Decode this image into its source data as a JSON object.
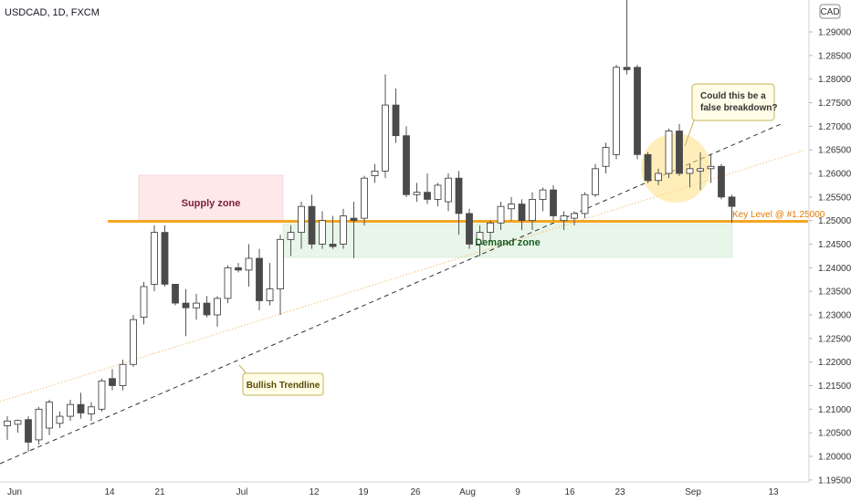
{
  "symbol_label": "USDCAD, 1D, FXCM",
  "currency_badge": "CAD",
  "colors": {
    "up_body": "#ffffff",
    "down_body": "#4a4a4a",
    "wick": "#555555",
    "key_level": "#f5a623",
    "supply_fill": "#fde8ea",
    "supply_text": "#7a1f3d",
    "demand_fill": "#e8f5e9",
    "demand_text": "#1b5e20",
    "trendline_dash": "#333333",
    "trendline_dot": "#f5c27a",
    "callout_fill": "#fffde7",
    "callout_border": "#c5b358",
    "highlight": "#ffe082"
  },
  "chart_data": {
    "type": "candlestick",
    "title": "USDCAD, 1D, FXCM",
    "x_tick_labels": [
      "Jun",
      "14",
      "21",
      "Jul",
      "12",
      "19",
      "26",
      "Aug",
      "9",
      "16",
      "23",
      "Sep",
      "13"
    ],
    "y_tick_labels": [
      "1.29000",
      "1.28500",
      "1.28000",
      "1.27500",
      "1.27000",
      "1.26500",
      "1.26000",
      "1.25500",
      "1.25000",
      "1.24500",
      "1.24000",
      "1.23500",
      "1.23000",
      "1.22500",
      "1.22000",
      "1.21500",
      "1.21000",
      "1.20500",
      "1.20000",
      "1.19500"
    ],
    "ylim": [
      1.195,
      1.3
    ],
    "grid": false,
    "candles": [
      {
        "o": 1.2065,
        "h": 1.2085,
        "l": 1.2035,
        "c": 1.2075
      },
      {
        "o": 1.2068,
        "h": 1.2078,
        "l": 1.205,
        "c": 1.2076
      },
      {
        "o": 1.2078,
        "h": 1.2085,
        "l": 1.201,
        "c": 1.203
      },
      {
        "o": 1.2035,
        "h": 1.2105,
        "l": 1.2025,
        "c": 1.21
      },
      {
        "o": 1.206,
        "h": 1.212,
        "l": 1.2045,
        "c": 1.2115
      },
      {
        "o": 1.207,
        "h": 1.2095,
        "l": 1.206,
        "c": 1.2085
      },
      {
        "o": 1.2085,
        "h": 1.212,
        "l": 1.2075,
        "c": 1.211
      },
      {
        "o": 1.211,
        "h": 1.2135,
        "l": 1.208,
        "c": 1.2092
      },
      {
        "o": 1.209,
        "h": 1.2115,
        "l": 1.2075,
        "c": 1.2105
      },
      {
        "o": 1.21,
        "h": 1.2165,
        "l": 1.2095,
        "c": 1.216
      },
      {
        "o": 1.2165,
        "h": 1.2185,
        "l": 1.214,
        "c": 1.215
      },
      {
        "o": 1.215,
        "h": 1.2205,
        "l": 1.214,
        "c": 1.2195
      },
      {
        "o": 1.2195,
        "h": 1.23,
        "l": 1.219,
        "c": 1.229
      },
      {
        "o": 1.2295,
        "h": 1.237,
        "l": 1.228,
        "c": 1.236
      },
      {
        "o": 1.2365,
        "h": 1.249,
        "l": 1.235,
        "c": 1.2475
      },
      {
        "o": 1.2475,
        "h": 1.249,
        "l": 1.236,
        "c": 1.2365
      },
      {
        "o": 1.2365,
        "h": 1.2365,
        "l": 1.232,
        "c": 1.2325
      },
      {
        "o": 1.2325,
        "h": 1.2355,
        "l": 1.2255,
        "c": 1.2315
      },
      {
        "o": 1.2315,
        "h": 1.2345,
        "l": 1.229,
        "c": 1.2325
      },
      {
        "o": 1.2325,
        "h": 1.234,
        "l": 1.2295,
        "c": 1.23
      },
      {
        "o": 1.23,
        "h": 1.234,
        "l": 1.2275,
        "c": 1.2335
      },
      {
        "o": 1.2335,
        "h": 1.2405,
        "l": 1.2325,
        "c": 1.24
      },
      {
        "o": 1.24,
        "h": 1.241,
        "l": 1.239,
        "c": 1.2395
      },
      {
        "o": 1.2395,
        "h": 1.245,
        "l": 1.236,
        "c": 1.242
      },
      {
        "o": 1.242,
        "h": 1.244,
        "l": 1.231,
        "c": 1.233
      },
      {
        "o": 1.233,
        "h": 1.241,
        "l": 1.232,
        "c": 1.2355
      },
      {
        "o": 1.2355,
        "h": 1.247,
        "l": 1.23,
        "c": 1.246
      },
      {
        "o": 1.246,
        "h": 1.249,
        "l": 1.2425,
        "c": 1.2475
      },
      {
        "o": 1.2475,
        "h": 1.254,
        "l": 1.244,
        "c": 1.253
      },
      {
        "o": 1.253,
        "h": 1.2555,
        "l": 1.244,
        "c": 1.245
      },
      {
        "o": 1.245,
        "h": 1.252,
        "l": 1.244,
        "c": 1.25
      },
      {
        "o": 1.245,
        "h": 1.251,
        "l": 1.244,
        "c": 1.2445
      },
      {
        "o": 1.245,
        "h": 1.2525,
        "l": 1.244,
        "c": 1.251
      },
      {
        "o": 1.2505,
        "h": 1.254,
        "l": 1.242,
        "c": 1.25
      },
      {
        "o": 1.2505,
        "h": 1.2595,
        "l": 1.249,
        "c": 1.259
      },
      {
        "o": 1.2595,
        "h": 1.262,
        "l": 1.258,
        "c": 1.2605
      },
      {
        "o": 1.2605,
        "h": 1.281,
        "l": 1.259,
        "c": 1.2745
      },
      {
        "o": 1.2745,
        "h": 1.278,
        "l": 1.2665,
        "c": 1.268
      },
      {
        "o": 1.268,
        "h": 1.27,
        "l": 1.255,
        "c": 1.2555
      },
      {
        "o": 1.2555,
        "h": 1.258,
        "l": 1.254,
        "c": 1.256
      },
      {
        "o": 1.256,
        "h": 1.26,
        "l": 1.2535,
        "c": 1.2545
      },
      {
        "o": 1.2545,
        "h": 1.258,
        "l": 1.253,
        "c": 1.2575
      },
      {
        "o": 1.254,
        "h": 1.26,
        "l": 1.252,
        "c": 1.259
      },
      {
        "o": 1.259,
        "h": 1.2605,
        "l": 1.247,
        "c": 1.2515
      },
      {
        "o": 1.2515,
        "h": 1.2525,
        "l": 1.244,
        "c": 1.245
      },
      {
        "o": 1.245,
        "h": 1.249,
        "l": 1.2425,
        "c": 1.2475
      },
      {
        "o": 1.2475,
        "h": 1.25,
        "l": 1.2455,
        "c": 1.2495
      },
      {
        "o": 1.2495,
        "h": 1.254,
        "l": 1.248,
        "c": 1.253
      },
      {
        "o": 1.2525,
        "h": 1.255,
        "l": 1.25,
        "c": 1.2535
      },
      {
        "o": 1.2535,
        "h": 1.2545,
        "l": 1.248,
        "c": 1.25
      },
      {
        "o": 1.25,
        "h": 1.256,
        "l": 1.248,
        "c": 1.2545
      },
      {
        "o": 1.2545,
        "h": 1.257,
        "l": 1.252,
        "c": 1.2565
      },
      {
        "o": 1.2565,
        "h": 1.2575,
        "l": 1.25,
        "c": 1.251
      },
      {
        "o": 1.25,
        "h": 1.252,
        "l": 1.248,
        "c": 1.251
      },
      {
        "o": 1.2505,
        "h": 1.252,
        "l": 1.249,
        "c": 1.2515
      },
      {
        "o": 1.2515,
        "h": 1.256,
        "l": 1.2505,
        "c": 1.2555
      },
      {
        "o": 1.2555,
        "h": 1.262,
        "l": 1.255,
        "c": 1.261
      },
      {
        "o": 1.2615,
        "h": 1.2665,
        "l": 1.26,
        "c": 1.2655
      },
      {
        "o": 1.264,
        "h": 1.283,
        "l": 1.263,
        "c": 1.2825
      },
      {
        "o": 1.2825,
        "h": 1.299,
        "l": 1.281,
        "c": 1.282
      },
      {
        "o": 1.2825,
        "h": 1.283,
        "l": 1.263,
        "c": 1.264
      },
      {
        "o": 1.264,
        "h": 1.2645,
        "l": 1.258,
        "c": 1.2585
      },
      {
        "o": 1.2585,
        "h": 1.261,
        "l": 1.2575,
        "c": 1.26
      },
      {
        "o": 1.26,
        "h": 1.2695,
        "l": 1.259,
        "c": 1.269
      },
      {
        "o": 1.269,
        "h": 1.2705,
        "l": 1.2595,
        "c": 1.26
      },
      {
        "o": 1.26,
        "h": 1.262,
        "l": 1.257,
        "c": 1.261
      },
      {
        "o": 1.2605,
        "h": 1.2645,
        "l": 1.2565,
        "c": 1.261
      },
      {
        "o": 1.261,
        "h": 1.264,
        "l": 1.258,
        "c": 1.2615
      },
      {
        "o": 1.2615,
        "h": 1.262,
        "l": 1.2545,
        "c": 1.255
      },
      {
        "o": 1.255,
        "h": 1.2555,
        "l": 1.2495,
        "c": 1.253
      }
    ],
    "key_level": 1.25,
    "annotations": {
      "supply": "Supply zone",
      "demand": "Demand zone",
      "trendline": "Bullish Trendline",
      "key_level": "Key Level @ #1.25000",
      "callout_line1": "Could this be a",
      "callout_line2": "false breakdown?"
    }
  }
}
